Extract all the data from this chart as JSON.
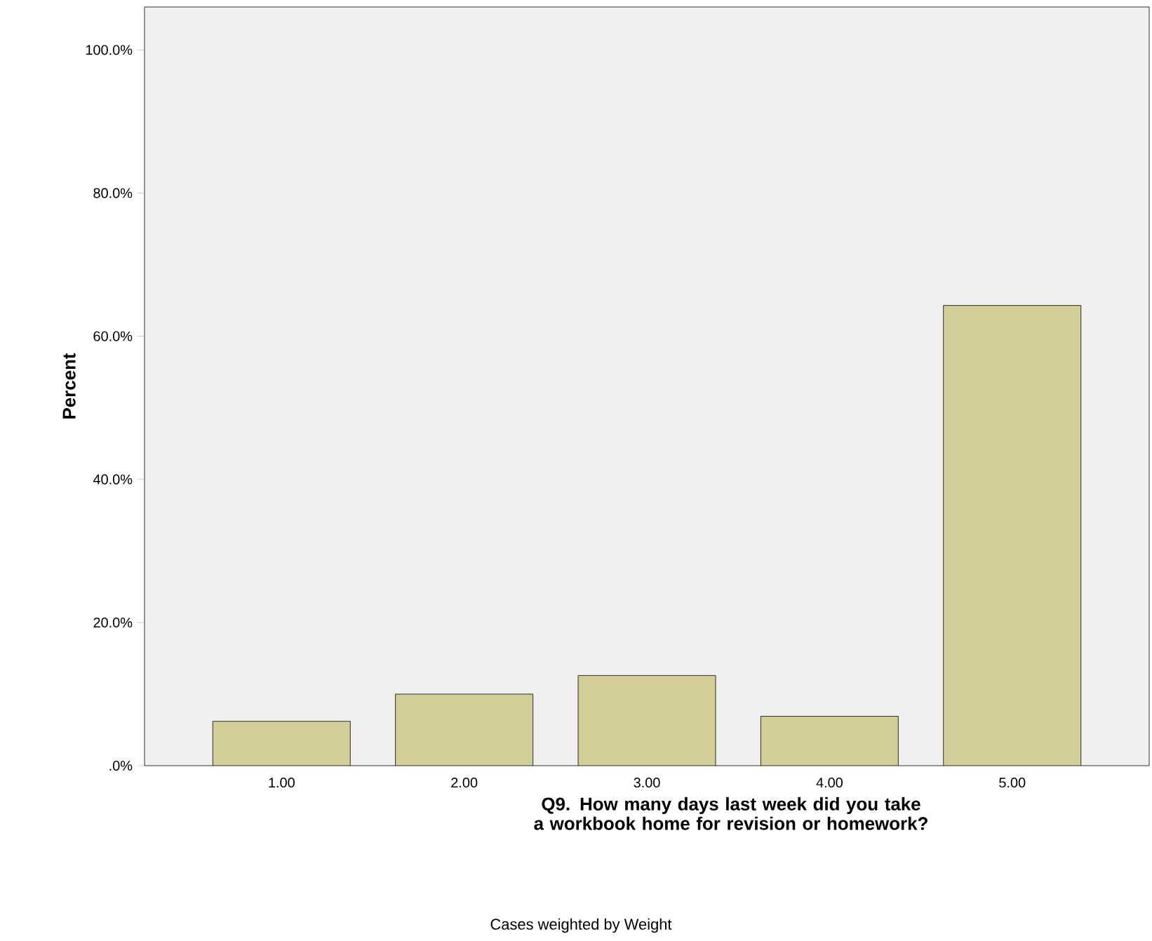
{
  "chart_data": {
    "type": "bar",
    "categories": [
      "1.00",
      "2.00",
      "3.00",
      "4.00",
      "5.00"
    ],
    "values": [
      6.2,
      10.0,
      12.6,
      6.9,
      64.3
    ],
    "color": "#d3ce98",
    "xlabel": "Q9. How many days last week did you take a workbook home for revision or homework?",
    "ylabel": "Percent",
    "ylim": [
      0,
      106
    ],
    "yticks": [
      {
        "value": 0,
        "label": ".0%"
      },
      {
        "value": 20,
        "label": "20.0%"
      },
      {
        "value": 40,
        "label": "40.0%"
      },
      {
        "value": 60,
        "label": "60.0%"
      },
      {
        "value": 80,
        "label": "80.0%"
      },
      {
        "value": 100,
        "label": "100.0%"
      }
    ],
    "annotations": [
      "Cases weighted by Weight"
    ]
  }
}
